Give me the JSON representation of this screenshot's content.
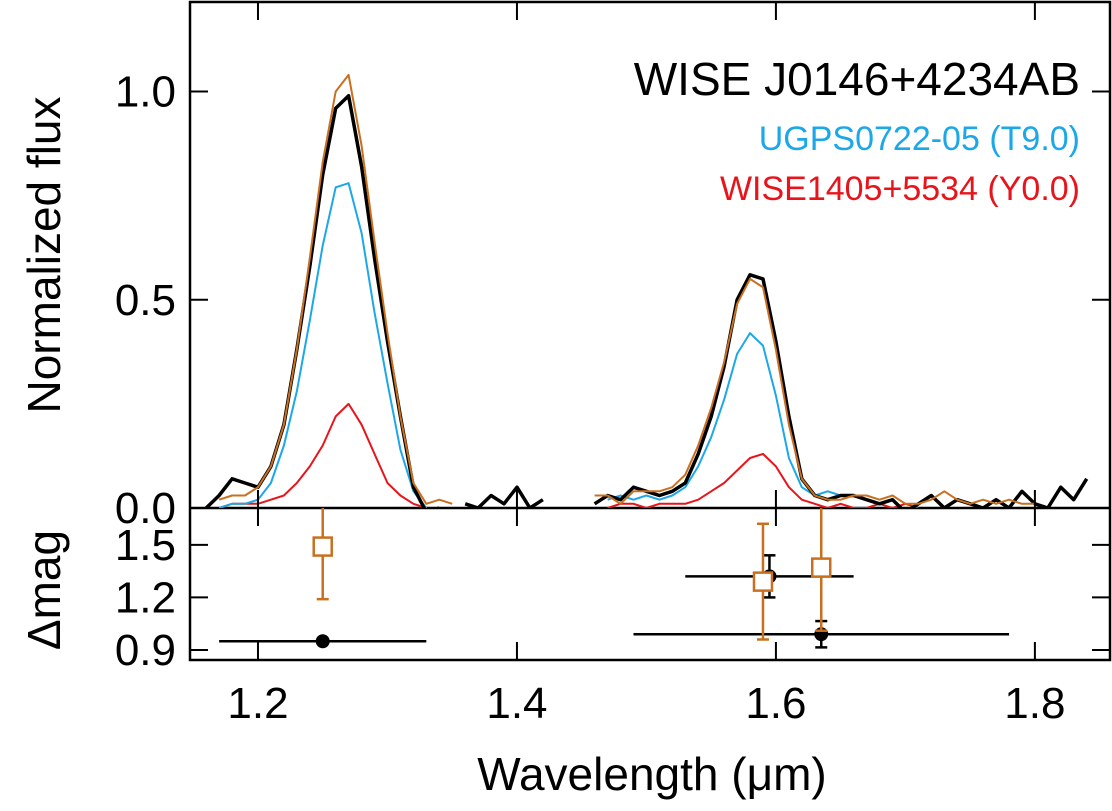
{
  "chart_data": [
    {
      "type": "line",
      "ylabel": "Normalized flux",
      "xlim": [
        1.1475,
        1.858
      ],
      "ylim": [
        0,
        1.215
      ],
      "yticks": [
        {
          "value": 0,
          "label": "0.0"
        },
        0.5,
        {
          "value": 1,
          "label": "1.0"
        }
      ],
      "x": [
        1.16,
        1.17,
        1.18,
        1.19,
        1.2,
        1.21,
        1.22,
        1.23,
        1.24,
        1.25,
        1.26,
        1.27,
        1.28,
        1.29,
        1.3,
        1.31,
        1.32,
        1.33,
        1.34,
        1.35,
        1.36,
        1.37,
        1.38,
        1.39,
        1.4,
        1.41,
        1.42,
        1.43,
        1.44,
        1.45,
        1.46,
        1.47,
        1.48,
        1.49,
        1.5,
        1.51,
        1.52,
        1.53,
        1.54,
        1.55,
        1.56,
        1.57,
        1.58,
        1.59,
        1.6,
        1.61,
        1.62,
        1.63,
        1.64,
        1.65,
        1.66,
        1.67,
        1.68,
        1.69,
        1.7,
        1.71,
        1.72,
        1.73,
        1.74,
        1.75,
        1.76,
        1.77,
        1.78,
        1.79,
        1.8,
        1.81,
        1.82,
        1.83,
        1.84
      ],
      "series": [
        {
          "name": "WISE1405+5534 (Y0.0)",
          "color": "#e8141c",
          "width": 2,
          "values": [
            null,
            0.0,
            0.01,
            0.01,
            0.01,
            0.02,
            0.03,
            0.06,
            0.1,
            0.15,
            0.22,
            0.25,
            0.2,
            0.13,
            0.06,
            0.03,
            0.01,
            0.0,
            null,
            null,
            null,
            null,
            null,
            null,
            null,
            null,
            null,
            null,
            null,
            null,
            null,
            0.0,
            0.01,
            0.01,
            0.0,
            0.01,
            0.01,
            0.01,
            0.02,
            0.04,
            0.06,
            0.09,
            0.12,
            0.13,
            0.1,
            0.05,
            0.02,
            0.01,
            0.0,
            0.01,
            0.0,
            0.0,
            0.01,
            0.0,
            0.01,
            0.0,
            null,
            null,
            null,
            null,
            null,
            null,
            null,
            null,
            null,
            null,
            null,
            null,
            null
          ]
        },
        {
          "name": "UGPS0722-05 (T9.0)",
          "color": "#1ca8e8",
          "width": 2,
          "values": [
            null,
            0.0,
            0.01,
            0.01,
            0.02,
            0.06,
            0.15,
            0.28,
            0.45,
            0.63,
            0.77,
            0.78,
            0.66,
            0.47,
            0.3,
            0.14,
            0.04,
            0.0,
            null,
            null,
            null,
            null,
            null,
            null,
            null,
            null,
            null,
            null,
            null,
            null,
            null,
            0.02,
            0.03,
            0.02,
            0.03,
            0.02,
            0.03,
            0.05,
            0.1,
            0.17,
            0.26,
            0.37,
            0.42,
            0.39,
            0.27,
            0.12,
            0.05,
            0.03,
            0.04,
            0.03,
            0.03,
            0.02,
            0.01,
            null,
            null,
            null,
            null,
            null,
            null,
            null,
            null,
            null,
            null,
            null,
            null,
            null,
            null,
            null,
            null
          ]
        },
        {
          "name": "WISE J0146+4234AB",
          "color": "#000000",
          "width": 3.5,
          "values": [
            0.0,
            0.03,
            0.07,
            0.06,
            0.05,
            0.1,
            0.2,
            0.38,
            0.58,
            0.8,
            0.96,
            0.99,
            0.82,
            0.6,
            0.4,
            0.22,
            0.05,
            -0.01,
            0.0,
            null,
            0.01,
            0.0,
            0.03,
            0.01,
            0.05,
            0.0,
            0.02,
            null,
            null,
            null,
            0.01,
            0.03,
            0.02,
            0.05,
            0.04,
            0.03,
            0.04,
            0.06,
            0.13,
            0.22,
            0.34,
            0.5,
            0.56,
            0.55,
            0.4,
            0.22,
            0.07,
            0.03,
            0.02,
            0.03,
            0.03,
            0.02,
            0.01,
            0.02,
            -0.01,
            0.01,
            0.03,
            0.0,
            0.02,
            0.01,
            0.0,
            0.02,
            0.0,
            0.04,
            0.01,
            0.0,
            0.05,
            0.02,
            0.07
          ]
        },
        {
          "color": "#c87020",
          "width": 2,
          "values": [
            null,
            0.02,
            0.03,
            0.03,
            0.05,
            0.1,
            0.2,
            0.38,
            0.6,
            0.83,
            1.0,
            1.04,
            0.87,
            0.64,
            0.42,
            0.22,
            0.06,
            0.01,
            0.02,
            0.01,
            null,
            null,
            null,
            null,
            null,
            null,
            null,
            null,
            null,
            null,
            0.03,
            0.03,
            0.01,
            0.04,
            0.04,
            0.04,
            0.05,
            0.08,
            0.15,
            0.24,
            0.35,
            0.49,
            0.55,
            0.53,
            0.38,
            0.2,
            0.07,
            0.03,
            0.02,
            0.02,
            0.03,
            0.03,
            0.02,
            0.03,
            0.01,
            0.01,
            0.02,
            0.04,
            0.02,
            0.01,
            0.02,
            0.01,
            0.02,
            0.01,
            0.01,
            null,
            null,
            null,
            null
          ]
        }
      ]
    },
    {
      "type": "errorbar",
      "xlabel": "Wavelength (μm)",
      "ylabel": "Δmag",
      "xlim": [
        1.1475,
        1.858
      ],
      "ylim": [
        0.843,
        1.71
      ],
      "xticks": [
        1.2,
        1.4,
        1.6,
        1.8
      ],
      "yticks": [
        0.9,
        1.2,
        1.5
      ],
      "series": [
        {
          "color": "#000000",
          "marker": "circle",
          "x": [
            1.25,
            1.595,
            1.635
          ],
          "values": [
            0.95,
            1.32,
            0.99
          ],
          "xerr": [
            0.08,
            0.065,
            0.145
          ],
          "yerr": [
            0,
            0.12,
            0.075
          ]
        },
        {
          "color": "#c87020",
          "marker": "square",
          "x": [
            1.25,
            1.59,
            1.635
          ],
          "values": [
            1.49,
            1.29,
            1.37
          ],
          "xerr": [
            0,
            0,
            0
          ],
          "yerr": [
            0.3,
            0.33,
            0.36
          ]
        }
      ]
    }
  ]
}
